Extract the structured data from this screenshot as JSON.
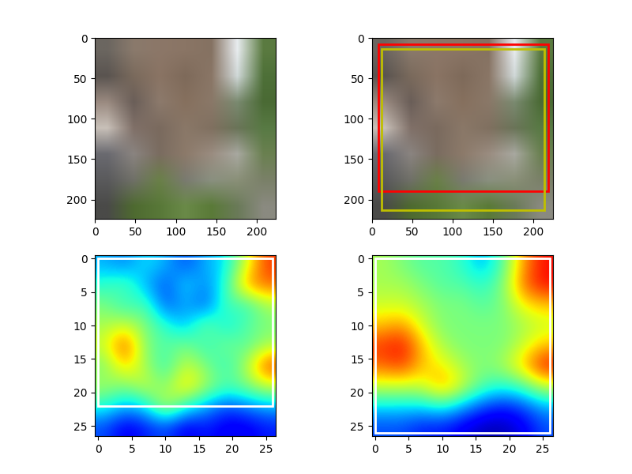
{
  "chart_data": [
    {
      "type": "image",
      "xlim": [
        0,
        224
      ],
      "ylim": [
        224,
        0
      ],
      "xticks": [
        0,
        50,
        100,
        150,
        200
      ],
      "yticks": [
        0,
        50,
        100,
        150,
        200
      ],
      "cells": [
        [
          "#6b6660",
          "#8a7a6c",
          "#8c7768",
          "#8a7565",
          "#857262",
          "#e8ecef",
          "#5a7a40"
        ],
        [
          "#5a5450",
          "#7a6a5c",
          "#8a7464",
          "#7e6a5a",
          "#8a7666",
          "#d0d8d8",
          "#4e7038"
        ],
        [
          "#9a8a80",
          "#6a5e58",
          "#8c7a6c",
          "#86705e",
          "#8a7868",
          "#7a8a70",
          "#4a6a34"
        ],
        [
          "#c8c0b8",
          "#807068",
          "#7a6a5e",
          "#8a7868",
          "#807060",
          "#6a7458",
          "#587a44"
        ],
        [
          "#6a6a70",
          "#8a8480",
          "#7a6c60",
          "#8c7a6a",
          "#9a8c80",
          "#a8a8a0",
          "#6a8050"
        ],
        [
          "#5a5a5c",
          "#707068",
          "#6a8048",
          "#7a7a70",
          "#8a9080",
          "#8a9078",
          "#7a8068"
        ],
        [
          "#4a4a48",
          "#4e6a30",
          "#587838",
          "#6a8a48",
          "#5a7a38",
          "#6a7a58",
          "#8a8a80"
        ]
      ],
      "boxes": []
    },
    {
      "type": "image",
      "xlim": [
        0,
        224
      ],
      "ylim": [
        224,
        0
      ],
      "xticks": [
        0,
        50,
        100,
        150,
        200
      ],
      "yticks": [
        0,
        50,
        100,
        150,
        200
      ],
      "cells": [
        [
          "#6b6660",
          "#8a7a6c",
          "#8c7768",
          "#8a7565",
          "#857262",
          "#e8ecef",
          "#5a7a40"
        ],
        [
          "#5a5450",
          "#7a6a5c",
          "#8a7464",
          "#7e6a5a",
          "#8a7666",
          "#d0d8d8",
          "#4e7038"
        ],
        [
          "#9a8a80",
          "#6a5e58",
          "#8c7a6c",
          "#86705e",
          "#8a7868",
          "#7a8a70",
          "#4a6a34"
        ],
        [
          "#c8c0b8",
          "#807068",
          "#7a6a5e",
          "#8a7868",
          "#807060",
          "#6a7458",
          "#587a44"
        ],
        [
          "#6a6a70",
          "#8a8480",
          "#7a6c60",
          "#8c7a6a",
          "#9a8c80",
          "#a8a8a0",
          "#6a8050"
        ],
        [
          "#5a5a5c",
          "#707068",
          "#6a8048",
          "#7a7a70",
          "#8a9080",
          "#8a9078",
          "#7a8068"
        ],
        [
          "#4a4a48",
          "#4e6a30",
          "#587838",
          "#6a8a48",
          "#5a7a38",
          "#6a7a58",
          "#8a8a80"
        ]
      ],
      "boxes": [
        {
          "color": "#ff0000",
          "x": [
            8,
            218
          ],
          "y": [
            8,
            190
          ]
        },
        {
          "color": "#bfbf00",
          "x": [
            12,
            213
          ],
          "y": [
            14,
            213
          ]
        }
      ]
    },
    {
      "type": "heatmap",
      "xlim": [
        -0.5,
        26.5
      ],
      "ylim": [
        26.5,
        -0.5
      ],
      "xticks": [
        0,
        5,
        10,
        15,
        20,
        25
      ],
      "yticks": [
        0,
        5,
        10,
        15,
        20,
        25
      ],
      "color_range": [
        0,
        1
      ],
      "cells": [
        [
          0.3,
          0.25,
          0.35,
          0.3,
          0.2,
          0.3,
          0.35,
          0.6,
          0.85
        ],
        [
          0.4,
          0.45,
          0.3,
          0.2,
          0.35,
          0.25,
          0.4,
          0.75,
          0.8
        ],
        [
          0.5,
          0.4,
          0.45,
          0.2,
          0.3,
          0.2,
          0.45,
          0.4,
          0.55
        ],
        [
          0.55,
          0.6,
          0.5,
          0.4,
          0.3,
          0.5,
          0.35,
          0.45,
          0.5
        ],
        [
          0.6,
          0.85,
          0.5,
          0.45,
          0.5,
          0.4,
          0.5,
          0.45,
          0.55
        ],
        [
          0.5,
          0.7,
          0.55,
          0.4,
          0.6,
          0.5,
          0.4,
          0.55,
          0.85
        ],
        [
          0.55,
          0.5,
          0.6,
          0.5,
          0.7,
          0.55,
          0.45,
          0.5,
          0.6
        ],
        [
          0.4,
          0.3,
          0.35,
          0.6,
          0.4,
          0.3,
          0.2,
          0.25,
          0.3
        ],
        [
          0.2,
          0.1,
          0.15,
          0.2,
          0.1,
          0.15,
          0.1,
          0.1,
          0.15
        ]
      ],
      "boxes": [
        {
          "color": "#ffffff",
          "x": [
            0,
            26
          ],
          "y": [
            0,
            22
          ]
        }
      ]
    },
    {
      "type": "heatmap",
      "xlim": [
        -0.5,
        26.5
      ],
      "ylim": [
        26.5,
        -0.5
      ],
      "xticks": [
        0,
        5,
        10,
        15,
        20,
        25
      ],
      "yticks": [
        0,
        5,
        10,
        15,
        20,
        25
      ],
      "color_range": [
        0,
        1
      ],
      "cells": [
        [
          0.55,
          0.5,
          0.45,
          0.45,
          0.4,
          0.3,
          0.45,
          0.75,
          0.9
        ],
        [
          0.55,
          0.55,
          0.5,
          0.45,
          0.45,
          0.4,
          0.5,
          0.8,
          0.9
        ],
        [
          0.6,
          0.6,
          0.55,
          0.5,
          0.5,
          0.45,
          0.5,
          0.65,
          0.7
        ],
        [
          0.7,
          0.75,
          0.6,
          0.5,
          0.5,
          0.5,
          0.5,
          0.55,
          0.6
        ],
        [
          0.85,
          0.9,
          0.7,
          0.55,
          0.5,
          0.5,
          0.5,
          0.6,
          0.7
        ],
        [
          0.8,
          0.85,
          0.7,
          0.65,
          0.55,
          0.5,
          0.55,
          0.7,
          0.9
        ],
        [
          0.6,
          0.6,
          0.6,
          0.75,
          0.6,
          0.45,
          0.4,
          0.45,
          0.6
        ],
        [
          0.35,
          0.35,
          0.35,
          0.4,
          0.3,
          0.2,
          0.15,
          0.2,
          0.3
        ],
        [
          0.2,
          0.2,
          0.15,
          0.15,
          0.1,
          0.05,
          0.05,
          0.1,
          0.2
        ]
      ],
      "boxes": [
        {
          "color": "#ffffff",
          "x": [
            0,
            26
          ],
          "y": [
            0,
            26
          ]
        }
      ]
    }
  ]
}
